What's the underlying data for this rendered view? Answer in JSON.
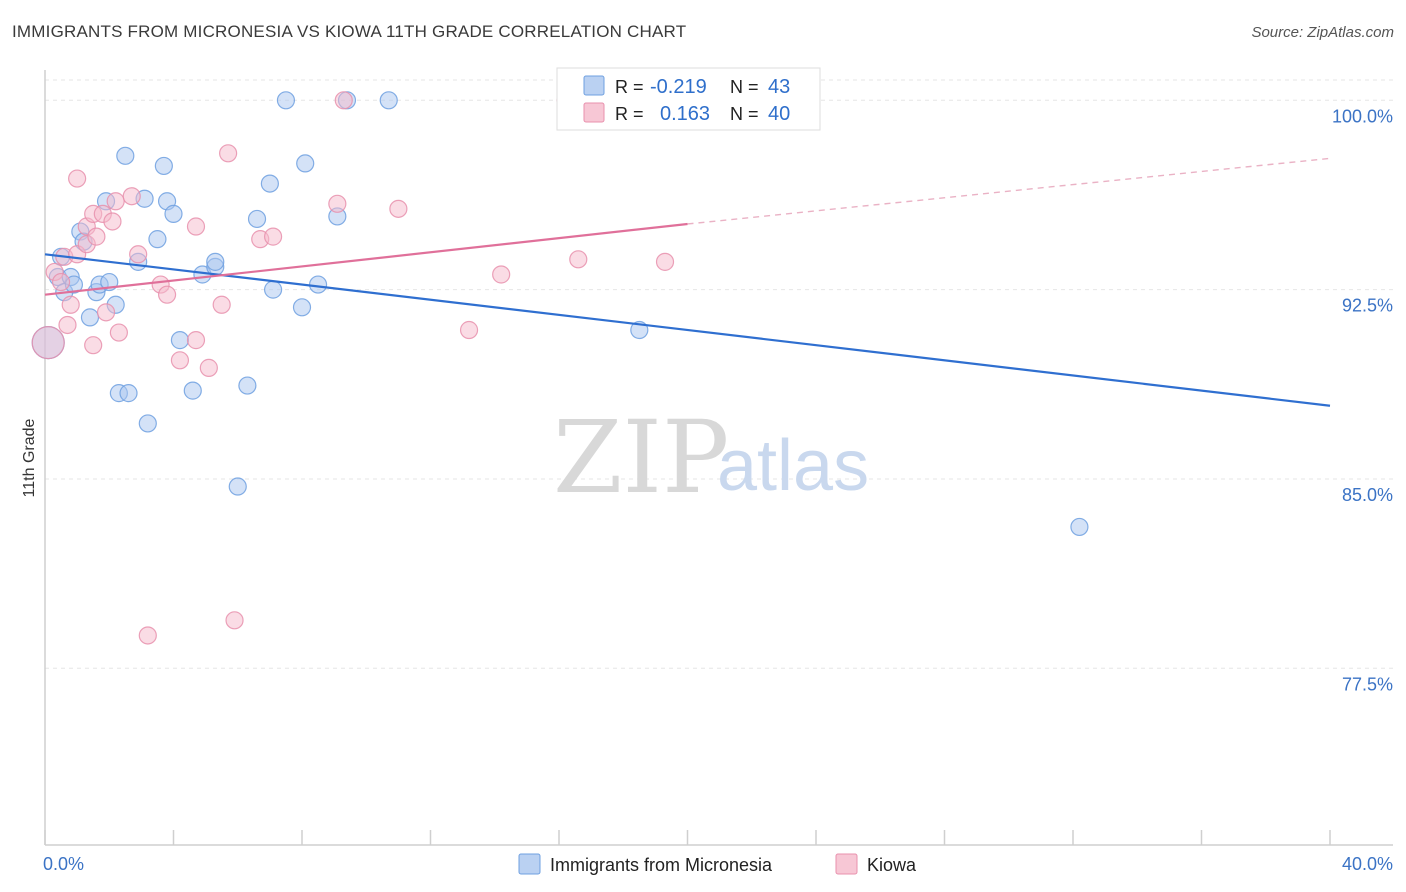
{
  "header": {
    "title": "IMMIGRANTS FROM MICRONESIA VS KIOWA 11TH GRADE CORRELATION CHART",
    "source": "Source: ZipAtlas.com"
  },
  "watermark": {
    "zip": "ZIP",
    "atlas": "atlas"
  },
  "legend_stats": [
    {
      "r_label": "R =",
      "r_value": "-0.219",
      "n_label": "N =",
      "n_value": "43",
      "color": "#a9c5ef"
    },
    {
      "r_label": "R =",
      "r_value": "0.163",
      "n_label": "N =",
      "n_value": "40",
      "color": "#f5b9cb"
    }
  ],
  "chart_data": {
    "type": "scatter",
    "title": "IMMIGRANTS FROM MICRONESIA VS KIOWA 11TH GRADE CORRELATION CHART",
    "xlabel": "",
    "ylabel": "11th Grade",
    "xlim": [
      0,
      40
    ],
    "ylim": [
      70.5,
      101.2
    ],
    "x_tick_labels": [
      {
        "value": 0,
        "label": "0.0%"
      },
      {
        "value": 40,
        "label": "40.0%"
      }
    ],
    "y_tick_labels": [
      {
        "value": 100,
        "label": "100.0%"
      },
      {
        "value": 92.5,
        "label": "92.5%"
      },
      {
        "value": 85,
        "label": "85.0%"
      },
      {
        "value": 77.5,
        "label": "77.5%"
      }
    ],
    "grid": true,
    "legend_position": "bottom",
    "series": [
      {
        "name": "Immigrants from Micronesia",
        "color": "#6fa0e0",
        "fill": "#a9c5ef",
        "trend": {
          "x": [
            0,
            40
          ],
          "y": [
            93.9,
            87.9
          ]
        },
        "points": [
          [
            0.1,
            90.4
          ],
          [
            0.4,
            93.0
          ],
          [
            0.5,
            93.8
          ],
          [
            0.6,
            92.4
          ],
          [
            0.8,
            93.0
          ],
          [
            0.9,
            92.7
          ],
          [
            1.1,
            94.8
          ],
          [
            1.2,
            94.4
          ],
          [
            1.4,
            91.4
          ],
          [
            1.6,
            92.4
          ],
          [
            1.7,
            92.7
          ],
          [
            1.9,
            96.0
          ],
          [
            2.0,
            92.8
          ],
          [
            2.2,
            91.9
          ],
          [
            2.3,
            88.4
          ],
          [
            2.5,
            97.8
          ],
          [
            2.6,
            88.4
          ],
          [
            2.9,
            93.6
          ],
          [
            3.1,
            96.1
          ],
          [
            3.2,
            87.2
          ],
          [
            3.5,
            94.5
          ],
          [
            3.7,
            97.4
          ],
          [
            3.8,
            96.0
          ],
          [
            4.0,
            95.5
          ],
          [
            4.2,
            90.5
          ],
          [
            4.6,
            88.5
          ],
          [
            4.9,
            93.1
          ],
          [
            5.3,
            93.4
          ],
          [
            5.3,
            93.6
          ],
          [
            6.0,
            84.7
          ],
          [
            6.3,
            88.7
          ],
          [
            6.6,
            95.3
          ],
          [
            7.0,
            96.7
          ],
          [
            7.1,
            92.5
          ],
          [
            7.5,
            100.0
          ],
          [
            8.0,
            91.8
          ],
          [
            8.1,
            97.5
          ],
          [
            8.5,
            92.7
          ],
          [
            9.1,
            95.4
          ],
          [
            9.4,
            100.0
          ],
          [
            10.7,
            100.0
          ],
          [
            18.5,
            90.9
          ],
          [
            32.2,
            83.1
          ]
        ]
      },
      {
        "name": "Kiowa",
        "color": "#e890ad",
        "fill": "#f5b9cb",
        "trend": {
          "x": [
            0,
            20
          ],
          "y": [
            92.3,
            95.1
          ],
          "dashed_to": {
            "x": 40,
            "y": 97.7
          }
        },
        "points": [
          [
            0.1,
            90.4
          ],
          [
            0.3,
            93.2
          ],
          [
            0.5,
            92.8
          ],
          [
            0.6,
            93.8
          ],
          [
            0.7,
            91.1
          ],
          [
            0.8,
            91.9
          ],
          [
            1.0,
            93.9
          ],
          [
            1.0,
            96.9
          ],
          [
            1.3,
            94.3
          ],
          [
            1.3,
            95.0
          ],
          [
            1.5,
            90.3
          ],
          [
            1.5,
            95.5
          ],
          [
            1.6,
            94.6
          ],
          [
            1.8,
            95.5
          ],
          [
            1.9,
            91.6
          ],
          [
            2.1,
            95.2
          ],
          [
            2.2,
            96.0
          ],
          [
            2.3,
            90.8
          ],
          [
            2.7,
            96.2
          ],
          [
            2.9,
            93.9
          ],
          [
            3.2,
            78.8
          ],
          [
            3.6,
            92.7
          ],
          [
            3.8,
            92.3
          ],
          [
            4.2,
            89.7
          ],
          [
            4.7,
            90.5
          ],
          [
            4.7,
            95.0
          ],
          [
            5.1,
            89.4
          ],
          [
            5.5,
            91.9
          ],
          [
            5.7,
            97.9
          ],
          [
            5.9,
            79.4
          ],
          [
            6.7,
            94.5
          ],
          [
            7.1,
            94.6
          ],
          [
            9.1,
            95.9
          ],
          [
            9.3,
            100.0
          ],
          [
            11.0,
            95.7
          ],
          [
            13.2,
            90.9
          ],
          [
            14.2,
            93.1
          ],
          [
            16.2,
            100.0
          ],
          [
            16.6,
            93.7
          ],
          [
            19.3,
            93.6
          ]
        ]
      }
    ]
  }
}
